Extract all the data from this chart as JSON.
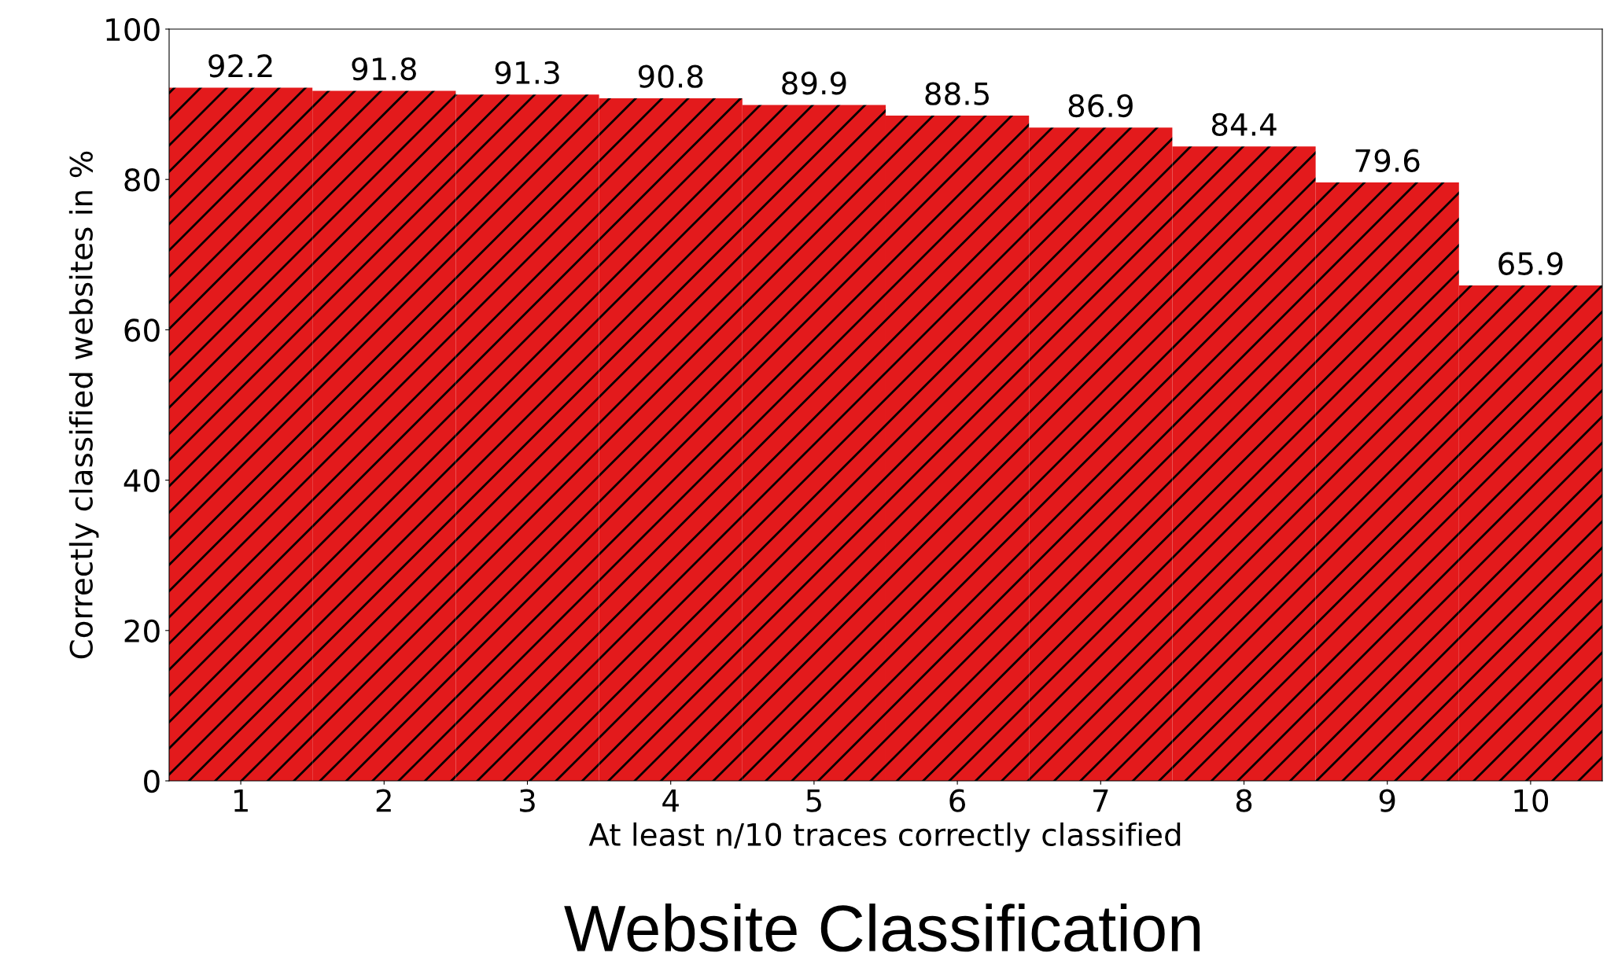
{
  "chart_data": {
    "type": "bar",
    "title": "Website Classification",
    "xlabel": "At least n/10 traces correctly classified",
    "ylabel": "Correctly classified websites in %",
    "categories": [
      "1",
      "2",
      "3",
      "4",
      "5",
      "6",
      "7",
      "8",
      "9",
      "10"
    ],
    "values": [
      92.2,
      91.8,
      91.3,
      90.8,
      89.9,
      88.5,
      86.9,
      84.4,
      79.6,
      65.9
    ],
    "color": "#e31a1c",
    "ylim": [
      0,
      100
    ],
    "yticks": [
      0,
      20,
      40,
      60,
      80,
      100
    ],
    "data_labels": true,
    "grid": false,
    "legend": false
  }
}
